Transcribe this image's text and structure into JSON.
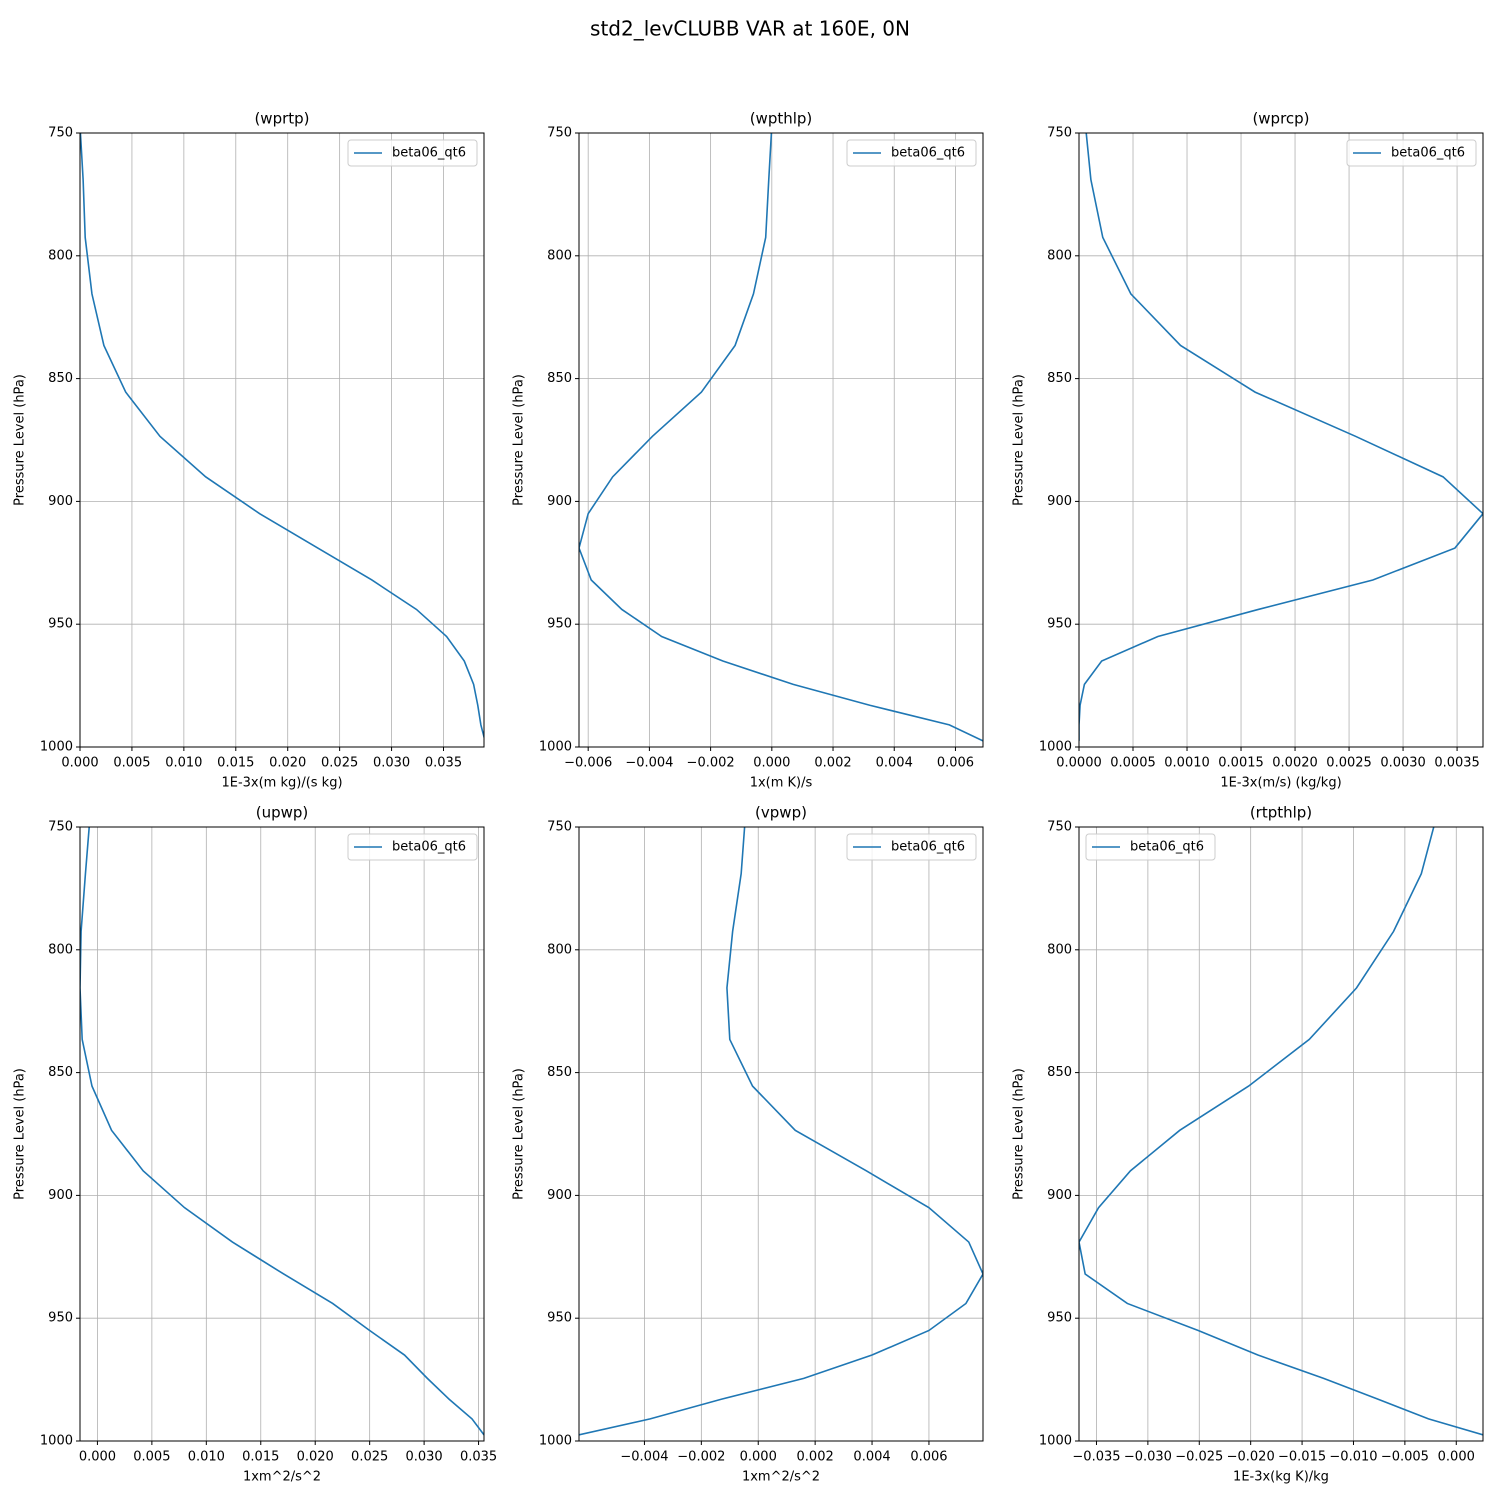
{
  "title": "std2_levCLUBB VAR at 160E, 0N",
  "chart_data": [
    {
      "type": "line",
      "title": "(wprtp)",
      "xlabel": "1E-3x(m kg)/(s kg)",
      "ylabel": "Pressure Level (hPa)",
      "grid": true,
      "legend": "upper right",
      "y": [
        747,
        769,
        792.5,
        815.5,
        836.5,
        855.5,
        873.5,
        890,
        905,
        919,
        932,
        944,
        955,
        965,
        974.5,
        983,
        991,
        997.5
      ],
      "ylim": [
        1000,
        750
      ],
      "yticks": [
        750,
        800,
        850,
        900,
        950,
        1000
      ],
      "xlim": [
        0,
        0.0389
      ],
      "xticks": [
        {
          "value": 0,
          "label": "0.000"
        },
        0.005,
        {
          "value": 0.01,
          "label": "0.010"
        },
        0.015,
        {
          "value": 0.02,
          "label": "0.020"
        },
        0.025,
        {
          "value": 0.03,
          "label": "0.030"
        },
        0.035
      ],
      "series": [
        {
          "name": "beta06_qt6",
          "color": "#1f77b4",
          "values": [
            0,
            0.0003,
            0.0005,
            0.00115,
            0.0023,
            0.0044,
            0.0077,
            0.0121,
            0.0173,
            0.0229,
            0.0281,
            0.0324,
            0.0353,
            0.037,
            0.0379,
            0.0383,
            0.0386,
            0.039
          ]
        }
      ]
    },
    {
      "type": "line",
      "title": "(wpthlp)",
      "xlabel": "1x(m K)/s",
      "ylabel": "Pressure Level (hPa)",
      "grid": true,
      "legend": "upper right",
      "y": [
        747,
        769,
        792.5,
        815.5,
        836.5,
        855.5,
        873.5,
        890,
        905,
        919,
        932,
        944,
        955,
        965,
        974.5,
        983,
        991,
        997.5
      ],
      "ylim": [
        1000,
        750
      ],
      "yticks": [
        750,
        800,
        850,
        900,
        950,
        1000
      ],
      "xlim": [
        -0.0063,
        0.0069
      ],
      "xticks": [
        {
          "value": -0.006,
          "label": "−0.006"
        },
        {
          "value": -0.004,
          "label": "−0.004"
        },
        {
          "value": -0.002,
          "label": "−0.002"
        },
        {
          "value": 0,
          "label": "0.000"
        },
        0.002,
        0.004,
        0.006
      ],
      "series": [
        {
          "name": "beta06_qt6",
          "color": "#1f77b4",
          "values": [
            0,
            -0.0001,
            -0.0002,
            -0.0006,
            -0.0012,
            -0.0023,
            -0.0039,
            -0.0052,
            -0.006,
            -0.0063,
            -0.0059,
            -0.0049,
            -0.0036,
            -0.0016,
            0.0007,
            0.0032,
            0.0058,
            0.0069
          ]
        }
      ]
    },
    {
      "type": "line",
      "title": "(wprcp)",
      "xlabel": "1E-3x(m/s) (kg/kg)",
      "ylabel": "Pressure Level (hPa)",
      "grid": true,
      "legend": "upper right",
      "y": [
        747,
        769,
        792.5,
        815.5,
        836.5,
        855.5,
        873.5,
        890,
        905,
        919,
        932,
        944,
        955,
        965,
        974.5,
        983,
        991,
        997.5
      ],
      "ylim": [
        1000,
        750
      ],
      "yticks": [
        750,
        800,
        850,
        900,
        950,
        1000
      ],
      "xlim": [
        0,
        0.00374
      ],
      "xticks": [
        {
          "value": 0,
          "label": "0.0000"
        },
        0.0005,
        {
          "value": 0.001,
          "label": "0.0010"
        },
        0.0015,
        {
          "value": 0.002,
          "label": "0.0020"
        },
        0.0025,
        {
          "value": 0.003,
          "label": "0.0030"
        },
        0.0035
      ],
      "series": [
        {
          "name": "beta06_qt6",
          "color": "#1f77b4",
          "values": [
            6e-05,
            0.00011,
            0.00022,
            0.00048,
            0.00094,
            0.00163,
            0.00256,
            0.00337,
            0.00374,
            0.00348,
            0.00272,
            0.00166,
            0.00073,
            0.00021,
            5e-05,
            1e-05,
            0,
            0
          ]
        }
      ]
    },
    {
      "type": "line",
      "title": "(upwp)",
      "xlabel": "1xm^2/s^2",
      "ylabel": "Pressure Level (hPa)",
      "grid": true,
      "legend": "upper right",
      "y": [
        747,
        769,
        792.5,
        815.5,
        836.5,
        855.5,
        873.5,
        890,
        905,
        919,
        932,
        944,
        955,
        965,
        974.5,
        983,
        991,
        997.5
      ],
      "ylim": [
        1000,
        750
      ],
      "yticks": [
        750,
        800,
        850,
        900,
        950,
        1000
      ],
      "xlim": [
        -0.0016,
        0.0355
      ],
      "xticks": [
        {
          "value": 0,
          "label": "0.000"
        },
        0.005,
        {
          "value": 0.01,
          "label": "0.010"
        },
        0.015,
        {
          "value": 0.02,
          "label": "0.020"
        },
        0.025,
        {
          "value": 0.03,
          "label": "0.030"
        },
        0.035
      ],
      "series": [
        {
          "name": "beta06_qt6",
          "color": "#1f77b4",
          "values": [
            -0.0007,
            -0.0011,
            -0.0015,
            -0.0016,
            -0.0014,
            -0.0005,
            0.0013,
            0.0042,
            0.008,
            0.0124,
            0.0171,
            0.0216,
            0.025,
            0.0282,
            0.0303,
            0.0323,
            0.0344,
            0.0355
          ]
        }
      ]
    },
    {
      "type": "line",
      "title": "(vpwp)",
      "xlabel": "1xm^2/s^2",
      "ylabel": "Pressure Level (hPa)",
      "grid": true,
      "legend": "upper right",
      "y": [
        747,
        769,
        792.5,
        815.5,
        836.5,
        855.5,
        873.5,
        890,
        905,
        919,
        932,
        944,
        955,
        965,
        974.5,
        983,
        991,
        997.5
      ],
      "ylim": [
        1000,
        750
      ],
      "yticks": [
        750,
        800,
        850,
        900,
        950,
        1000
      ],
      "xlim": [
        -0.0063,
        0.0079
      ],
      "xticks": [
        {
          "value": -0.004,
          "label": "−0.004"
        },
        {
          "value": -0.002,
          "label": "−0.002"
        },
        {
          "value": 0,
          "label": "0.000"
        },
        0.002,
        0.004,
        0.006
      ],
      "series": [
        {
          "name": "beta06_qt6",
          "color": "#1f77b4",
          "values": [
            -0.00046,
            -0.0006,
            -0.0009,
            -0.0011,
            -0.001,
            -0.0002,
            0.0013,
            0.0038,
            0.006,
            0.0074,
            0.0079,
            0.0073,
            0.006,
            0.004,
            0.0016,
            -0.0013,
            -0.0038,
            -0.0063
          ]
        }
      ]
    },
    {
      "type": "line",
      "title": "(rtpthlp)",
      "xlabel": "1E-3x(kg K)/kg",
      "ylabel": "Pressure Level (hPa)",
      "grid": true,
      "legend": "upper left",
      "y": [
        747,
        769,
        792.5,
        815.5,
        836.5,
        855.5,
        873.5,
        890,
        905,
        919,
        932,
        944,
        955,
        965,
        974.5,
        983,
        991,
        997.5
      ],
      "ylim": [
        1000,
        750
      ],
      "yticks": [
        750,
        800,
        850,
        900,
        950,
        1000
      ],
      "xlim": [
        -0.0367,
        0.0026
      ],
      "xticks": [
        {
          "value": -0.035,
          "label": "−0.035"
        },
        {
          "value": -0.03,
          "label": "−0.030"
        },
        {
          "value": -0.025,
          "label": "−0.025"
        },
        {
          "value": -0.02,
          "label": "−0.020"
        },
        {
          "value": -0.015,
          "label": "−0.015"
        },
        {
          "value": -0.01,
          "label": "−0.010"
        },
        {
          "value": -0.005,
          "label": "−0.005"
        },
        {
          "value": 0,
          "label": "0.000"
        }
      ],
      "series": [
        {
          "name": "beta06_qt6",
          "color": "#1f77b4",
          "values": [
            -0.002,
            -0.0034,
            -0.0061,
            -0.0097,
            -0.0143,
            -0.0202,
            -0.0269,
            -0.0317,
            -0.0348,
            -0.0367,
            -0.0361,
            -0.032,
            -0.0251,
            -0.0193,
            -0.0129,
            -0.0076,
            -0.0027,
            0.0026
          ]
        }
      ]
    }
  ]
}
